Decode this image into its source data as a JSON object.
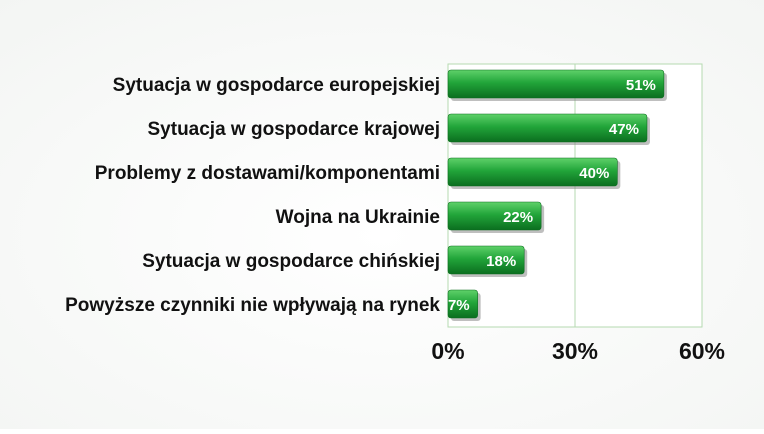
{
  "chart_data": {
    "type": "bar",
    "orientation": "horizontal",
    "categories": [
      "Sytuacja w gospodarce europejskiej",
      "Sytuacja w gospodarce krajowej",
      "Problemy z dostawami/komponentami",
      "Wojna na Ukrainie",
      "Sytuacja w gospodarce chińskiej",
      "Powyższe czynniki nie wpływają na rynek"
    ],
    "values": [
      51,
      47,
      40,
      22,
      18,
      7
    ],
    "value_labels": [
      "51%",
      "47%",
      "40%",
      "22%",
      "18%",
      "7%"
    ],
    "x_ticks": [
      0,
      30,
      60
    ],
    "x_tick_labels": [
      "0%",
      "30%",
      "60%"
    ],
    "xlim": [
      0,
      60
    ],
    "grid": true,
    "colors": {
      "bar_light": "#5fd16a",
      "bar_mid": "#22a53a",
      "bar_dark": "#0b6e1f",
      "grid": "#b5dab0",
      "plot_background": "#ffffff",
      "page_background": "#f3f5f3",
      "shadow": "#8a8a8a"
    }
  }
}
